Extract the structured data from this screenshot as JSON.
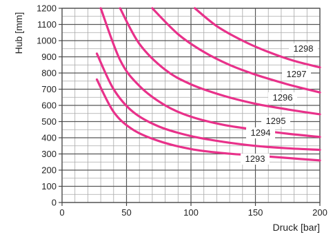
{
  "chart_data": {
    "type": "line",
    "xlabel": "Druck [bar]",
    "ylabel": "Hub [mm]",
    "xlim": [
      0,
      200
    ],
    "ylim": [
      0,
      1200
    ],
    "grid": true,
    "x_ticks": [
      0,
      50,
      100,
      150,
      200
    ],
    "y_ticks": [
      0,
      100,
      200,
      300,
      400,
      500,
      600,
      700,
      800,
      900,
      1000,
      1100,
      1200
    ],
    "line_color": "#e8318a",
    "series": [
      {
        "name": "1293",
        "x": [
          27,
          40,
          55,
          75,
          100,
          125,
          150,
          175,
          200
        ],
        "y": [
          760,
          560,
          450,
          380,
          330,
          305,
          290,
          275,
          260
        ]
      },
      {
        "name": "1294",
        "x": [
          27,
          40,
          55,
          75,
          100,
          125,
          150,
          175,
          200
        ],
        "y": [
          920,
          700,
          560,
          470,
          410,
          375,
          350,
          335,
          325
        ]
      },
      {
        "name": "1295",
        "x": [
          30,
          45,
          60,
          80,
          100,
          125,
          150,
          175,
          200
        ],
        "y": [
          1200,
          880,
          720,
          600,
          530,
          480,
          450,
          425,
          405
        ]
      },
      {
        "name": "1296",
        "x": [
          45,
          60,
          80,
          100,
          125,
          150,
          175,
          200
        ],
        "y": [
          1200,
          980,
          820,
          730,
          660,
          610,
          575,
          545
        ]
      },
      {
        "name": "1297",
        "x": [
          70,
          90,
          110,
          130,
          150,
          175,
          200
        ],
        "y": [
          1200,
          1040,
          930,
          850,
          790,
          730,
          680
        ]
      },
      {
        "name": "1298",
        "x": [
          103,
          120,
          140,
          160,
          180,
          200
        ],
        "y": [
          1200,
          1090,
          1000,
          930,
          875,
          835
        ]
      }
    ]
  }
}
